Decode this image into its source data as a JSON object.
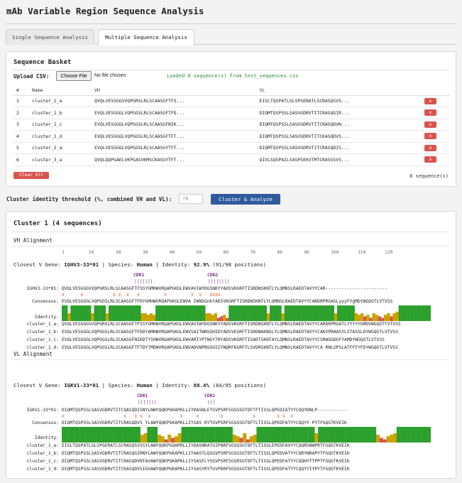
{
  "app": {
    "title": "mAb Variable Region Sequence Analysis"
  },
  "tabs": [
    {
      "label": "Single Sequence Analysis",
      "active": false
    },
    {
      "label": "Multiple Sequence Analysis",
      "active": true
    }
  ],
  "basket": {
    "title": "Sequence Basket",
    "upload_label": "Upload CSV:",
    "choose_file_label": "Choose File",
    "no_file_label": "No file chosen",
    "loaded_message": "Loaded 6 sequence(s) from test_sequences.csv",
    "columns": [
      "#",
      "Name",
      "VH",
      "VL",
      ""
    ],
    "rows": [
      {
        "num": "1",
        "name": "cluster_1_a",
        "vh": "QVQLVESGGGVVQPGRSLRLSCAASGFTFS...",
        "vl": "EIVLTQSPATLSLSPGERATLSCRASQSVS..."
      },
      {
        "num": "2",
        "name": "cluster_1_b",
        "vh": "EVQLVESGGGLVQPGGSLRLSCAASGFTFD...",
        "vl": "DIQMTQSPSSLSASVGDRVTITCRASQGIR..."
      },
      {
        "num": "3",
        "name": "cluster_1_c",
        "vh": "EVQLVESGGGLVQPGGSLRLSCAASGFNIK...",
        "vl": "DIQMTQSPSSLSASVGDRVTITCRASQDVN..."
      },
      {
        "num": "4",
        "name": "cluster_1_d",
        "vh": "EVQLVESGGGLVQPGGSLRLSCAASGFTFT...",
        "vl": "DIQMTQSPSSLSASVGDRVTITCKASQDVS..."
      },
      {
        "num": "5",
        "name": "cluster_2_a",
        "vh": "EVQLVESGGGLVQPGGSLRLSCAASGYTFT...",
        "vl": "DIQMTQSPSSLSASVGDRVTITCRASQDIS..."
      },
      {
        "num": "6",
        "name": "cluster_3_a",
        "vh": "QVQLQQPGAELVKPGASVKMSCKASGYTFT...",
        "vl": "QIVLSQSPAILSASPGEKVTMTCRASSSVS..."
      }
    ],
    "remove_label": "x",
    "clear_all_label": "Clear All",
    "count_label": "6 sequence(s)"
  },
  "threshold": {
    "label": "Cluster identity threshold (%, combined VH and VL):",
    "placeholder": "70",
    "button_label": "Cluster & Analyze"
  },
  "results": {
    "cluster_title": "Cluster 1 (4 sequences)",
    "vh": {
      "title": "VH Alignment",
      "ruler": "1         10        20        30        40        50        60        70        80        90        100       110       120",
      "closest_prefix": "Closest V Gene: ",
      "gene": "IGHV3-33*01",
      "species_prefix": " | Species: ",
      "species": "Human",
      "identity_prefix": " | Identity: ",
      "identity": "92.9%",
      "identity_suffix": " (91/98 positions)",
      "cdr1_label": "CDR1",
      "cdr2_label": "CDR2",
      "cdr1_bars": "|||||||",
      "cdr2_bars": "||||||||",
      "germline_label": "IGHV3-33*01:",
      "germline": "QVQLVESGGGVVQPGRSLRLSCAASGFTFSSYGMHWVRQAPGKGLEWVAVIWYDGSNKYYADSVKGRFTISRDNSKNTLYLQMNSLRAEDTAVYYCAR-----------------------",
      "diff_marks": "X      X           X X  X   X         X         X  X   XXXX",
      "consensus_label": "Consensus:",
      "consensus": "EVQLVESGGGLVQPGGSLRLSCAASGFTFDYGMHWVRQAPGKGLEWVA IWNSGnkYADSVKGRFTISRDNSKNTLYLQMNSLRAEDTAVYYCARDRPRGASLyyyFYgMDYWGQGTLVTVSS",
      "identity_label": "Identity:",
      "identity_profile": [
        1,
        1,
        0.5,
        1,
        1,
        1,
        1,
        1,
        1,
        1,
        0.5,
        1,
        1,
        1,
        1,
        0.5,
        1,
        1,
        1,
        1,
        1,
        1,
        1,
        1,
        1,
        1,
        1,
        0.5,
        0.5,
        0.4,
        0.5,
        0.4,
        1,
        1,
        1,
        1,
        1,
        1,
        1,
        1,
        1,
        1,
        1,
        1,
        1,
        1,
        1,
        1,
        1,
        0.5,
        0.5,
        0.4,
        0.5,
        0.2,
        0.3,
        0.4,
        0.2,
        1,
        1,
        1,
        1,
        1,
        1,
        1,
        1,
        1,
        1,
        1,
        1,
        1,
        0.5,
        1,
        1,
        1,
        1,
        0.5,
        1,
        1,
        1,
        1,
        1,
        1,
        1,
        1,
        1,
        1,
        1,
        1,
        1,
        1,
        1,
        1,
        1,
        0.5,
        1,
        1,
        1,
        1,
        1,
        1,
        0.5,
        0.4,
        0.5,
        0.3,
        0.4,
        0.2,
        0.5,
        0.4,
        0.3,
        0.2,
        0.4,
        0.5,
        0.3,
        0.5,
        0.6,
        1,
        1,
        1,
        1,
        1,
        1,
        1,
        1,
        1,
        1,
        1
      ],
      "sequences": [
        {
          "name": "cluster_1_a:",
          "seq": "QVQLVESGGGVVQPGRSLRLSCAASGFTFSSYGMHWVRQAPGKGLEWVAVIWYDGSNKYYADSVKGRFTISRDNSKNTLYLQMNSLRAEDTAVYYCARDRPRGATLYYYYYGMDVWGQGTTVTVSS"
        },
        {
          "name": "cluster_1_b:",
          "seq": "EVQLVESGGGLVQPGGSLRLSCAASGFTFDDYAMHWVRQAPGKGLEWVSAITWNSGHIDYADSVEGRFTISRDNAKNSLYLQMNSLRAEDTAVYYCAKVPRAASYLSTASSLDYWGQGTLVTVSS"
        },
        {
          "name": "cluster_1_c:",
          "seq": "EVQLVESGGGLVQPGGSLRLSCAASGFNIKDTYIHWVRQAPGKGLEWVARIYPTNGYTRYADSVKGRFTISADTSKNTAYLQMNSLRAEDTAVYYCSRWGGDGFYAMDYWGQGTLVTVSS"
        },
        {
          "name": "cluster_1_d:",
          "seq": "EVQLVESGGGLVQPGGSLRLSCAASGFTFTDYTMDWVRQAPGKGLEWVADVNPNSGGSIYNQRFKGRFTLSVDRSKNTLYLQMNSLRAEDTAVYYCA RNLGPSLATFFFYFDYWGQGTLVTVSS"
        }
      ]
    },
    "vl": {
      "title": "VL Alignment",
      "closest_prefix": "Closest V Gene: ",
      "gene": "IGKV1-33*01",
      "species_prefix": " | Species: ",
      "species": "Human",
      "identity_prefix": " | Identity: ",
      "identity": "88.4%",
      "identity_suffix": " (84/95 positions)",
      "cdr1_label": "CDR1",
      "cdr2_label": "CDR2",
      "cdr1_bars": "|||||||",
      "cdr2_bars": "|||",
      "germline_label": "IGKV1-33*01:",
      "germline": "DIQMTQSPSSLSASVGDRVTITCQASQDISNYLNWYQQKPGKAPKLLIYDASNLETGVPSRFSGSGSGTDFTFTISSLQPEDIATYYCQQYDNLP-----------",
      "diff_marks": "X                      X   X X  X           X     X        X           X        X X  X",
      "consensus_label": "Consensus:",
      "consensus": "DIQMTQSPSSLSASVGDRVTITCRASQDVS YLAWYQQKPGKAPKLLIYSAS RYTGVPSRFSGSGSGTDFTLTISSLQPEDFATYYCQQYY PYTFGQGTKVEIK",
      "identity_label": "Identity:",
      "identity_profile": [
        1,
        1,
        1,
        1,
        1,
        1,
        1,
        1,
        1,
        1,
        1,
        1,
        1,
        1,
        1,
        1,
        1,
        1,
        1,
        1,
        1,
        1,
        1,
        0.5,
        0.6,
        1,
        1,
        1,
        0.5,
        0.4,
        0.2,
        0.5,
        0.3,
        0.4,
        0.6,
        1,
        1,
        1,
        1,
        1,
        1,
        1,
        1,
        1,
        1,
        1,
        1,
        1,
        1,
        1,
        0.5,
        0.4,
        0.3,
        0.6,
        0.2,
        0.4,
        0.5,
        1,
        1,
        1,
        1,
        1,
        1,
        1,
        1,
        1,
        1,
        1,
        1,
        1,
        1,
        1,
        1,
        1,
        0.6,
        1,
        1,
        1,
        1,
        1,
        1,
        1,
        1,
        1,
        1,
        1,
        1,
        1,
        1,
        1,
        1,
        1,
        0.5,
        0.3,
        0.2,
        0.4,
        0.5,
        0.6,
        1,
        1,
        1,
        1,
        1,
        1,
        1,
        1,
        1,
        1
      ],
      "sequences": [
        {
          "name": "cluster_1_a:",
          "seq": "EIVLTQSPATLSLSPGERATLSCRASQSVSSYLAWYQQKPGQAPRLLIYDASNRATGIPARFSGSGSGTDFTLTISSLEPEDFAVYYCQQRSNWPRTFGQGTKVEIK"
        },
        {
          "name": "cluster_1_b:",
          "seq": "DIQMTQSPSSLSASVGDRVTITCRASQGIRNYLAWYQQKPGKAPKLLIYAASTLQSGVPSRFSGSGSGTDFTLTISSLQPEDVATYYCQRYNRAPYTFGQGTKVEIK"
        },
        {
          "name": "cluster_1_c:",
          "seq": "DIQMTQSPSSLSASVGDRVTITCRASQDVNTAVAWYQQKPGKAPKLLIYSASFLYSGVPSRFSGSRSGTDFTLTISSLQPEDFATYYCQQHYTTPPTFGQGTKVEIK"
        },
        {
          "name": "cluster_1_d:",
          "seq": "DIQMTQSPSSLSASVGDRVTITCKASQDVSIGVAWYQQKPGKAPKLLIYSASYRYTGVPDRFSGSGSGTDFTLTISSLQPEDFATYYCQQYYIYPYTFGQGTKVEIK"
        }
      ]
    }
  },
  "colors": {
    "danger": "#d9534f",
    "primary": "#2f5a9e",
    "success_text": "#2e8b3a",
    "identity_high": "#2ca02c",
    "identity_mid": "#c9a400",
    "identity_low": "#d9534f",
    "cdr": "#7a2a8a",
    "diff_mark": "#e06020"
  }
}
